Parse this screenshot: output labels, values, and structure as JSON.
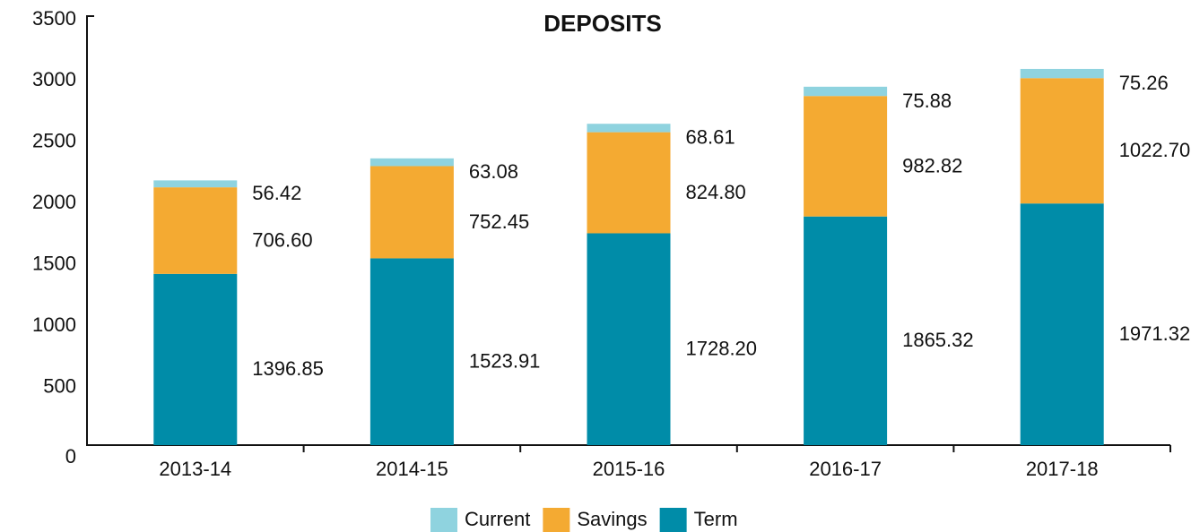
{
  "chart_data": {
    "type": "stacked_bar",
    "title": "DEPOSITS",
    "categories": [
      "2013-14",
      "2014-15",
      "2015-16",
      "2016-17",
      "2017-18"
    ],
    "series": [
      {
        "name": "Term",
        "color": "#008ca8",
        "values": [
          1396.85,
          1523.91,
          1728.2,
          1865.32,
          1971.32
        ],
        "value_labels": [
          "1396.85",
          "1523.91",
          "1728.20",
          "1865.32",
          "1971.32"
        ]
      },
      {
        "name": "Savings",
        "color": "#f4aa32",
        "values": [
          706.6,
          752.45,
          824.8,
          982.82,
          1022.7
        ],
        "value_labels": [
          "706.60",
          "752.45",
          "824.80",
          "982.82",
          "1022.70"
        ]
      },
      {
        "name": "Current",
        "color": "#8fd3df",
        "values": [
          56.42,
          63.08,
          68.61,
          75.88,
          75.26
        ],
        "value_labels": [
          "56.42",
          "63.08",
          "68.61",
          "75.88",
          "75.26"
        ]
      }
    ],
    "legend_order": [
      "Current",
      "Savings",
      "Term"
    ],
    "ylim": [
      0,
      3500
    ],
    "yticks": [
      0,
      500,
      1000,
      1500,
      2000,
      2500,
      3000,
      3500
    ]
  }
}
